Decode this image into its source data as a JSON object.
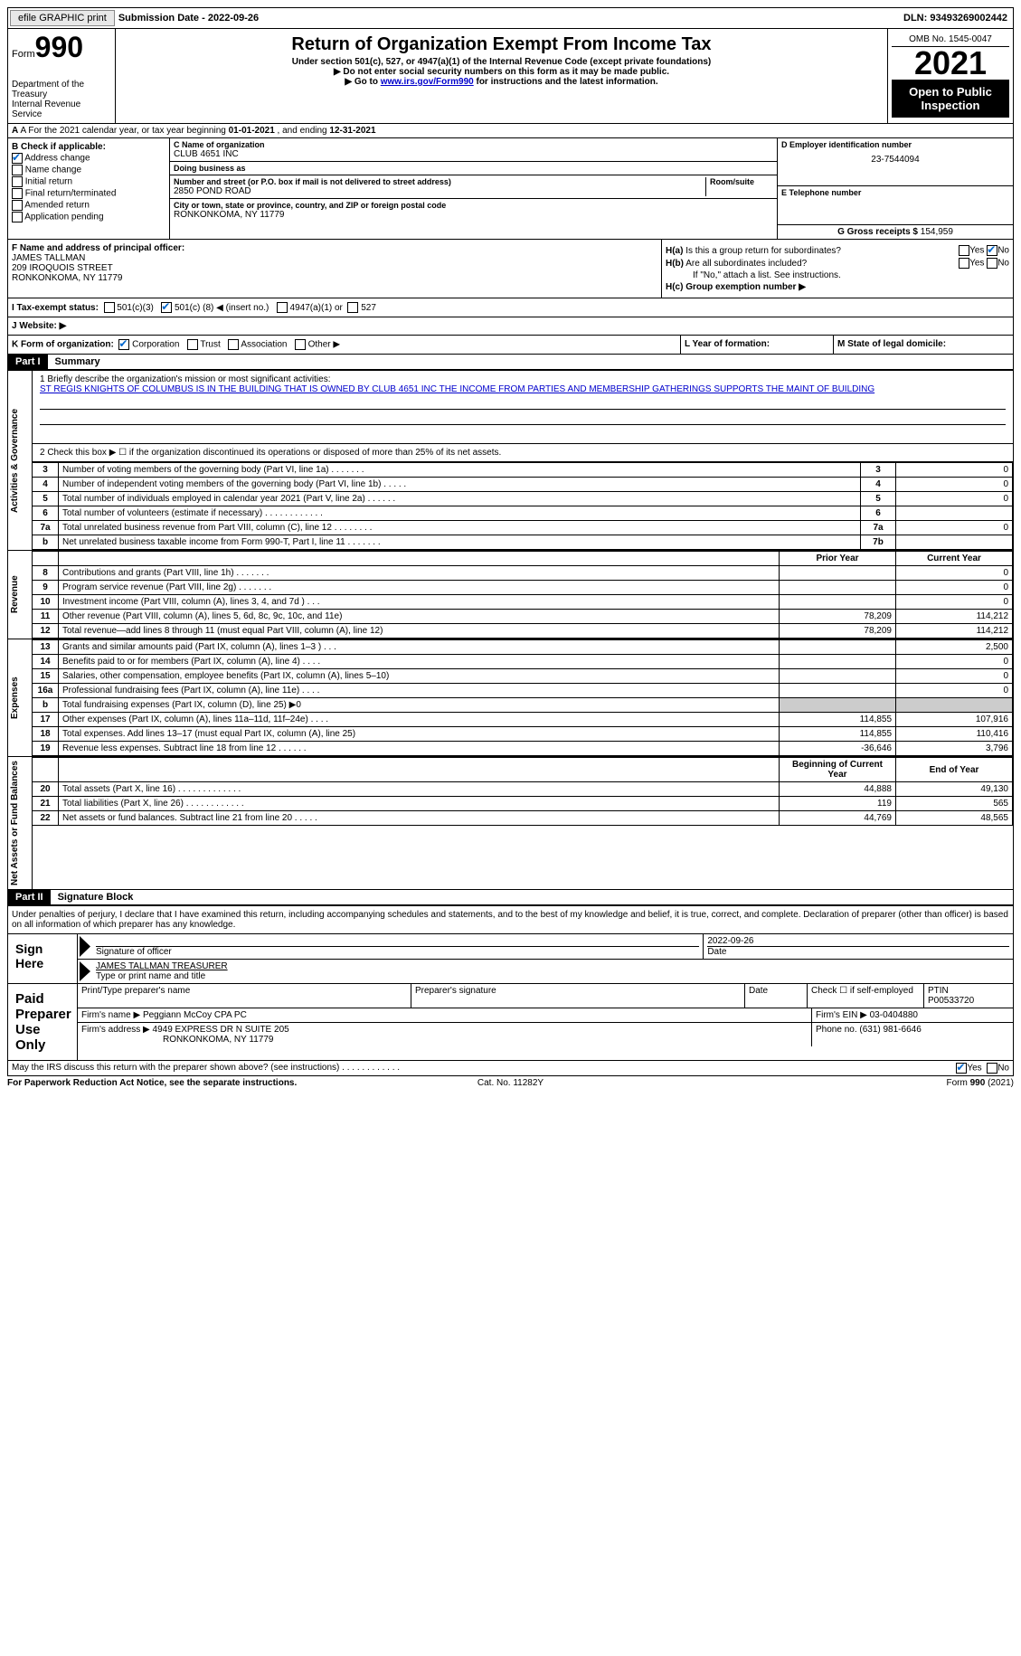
{
  "topbar": {
    "efile": "efile GRAPHIC print",
    "sub_date_label": "Submission Date - ",
    "sub_date": "2022-09-26",
    "dln_label": "DLN: ",
    "dln": "93493269002442"
  },
  "header": {
    "form_word": "Form",
    "form_num": "990",
    "title": "Return of Organization Exempt From Income Tax",
    "subtitle": "Under section 501(c), 527, or 4947(a)(1) of the Internal Revenue Code (except private foundations)",
    "note1": "▶ Do not enter social security numbers on this form as it may be made public.",
    "note2_pre": "▶ Go to ",
    "note2_link": "www.irs.gov/Form990",
    "note2_post": " for instructions and the latest information.",
    "dept": "Department of the Treasury",
    "irs": "Internal Revenue Service",
    "omb": "OMB No. 1545-0047",
    "year": "2021",
    "open": "Open to Public Inspection"
  },
  "rowA": {
    "text_pre": "A For the 2021 calendar year, or tax year beginning ",
    "begin": "01-01-2021",
    "mid": " , and ending ",
    "end": "12-31-2021"
  },
  "colB": {
    "label": "B Check if applicable:",
    "items": [
      {
        "label": "Address change",
        "checked": true
      },
      {
        "label": "Name change",
        "checked": false
      },
      {
        "label": "Initial return",
        "checked": false
      },
      {
        "label": "Final return/terminated",
        "checked": false
      },
      {
        "label": "Amended return",
        "checked": false
      },
      {
        "label": "Application pending",
        "checked": false
      }
    ]
  },
  "colC": {
    "name_label": "C Name of organization",
    "name": "CLUB 4651 INC",
    "dba_label": "Doing business as",
    "dba": "",
    "addr_label": "Number and street (or P.O. box if mail is not delivered to street address)",
    "room_label": "Room/suite",
    "addr": "2850 POND ROAD",
    "city_label": "City or town, state or province, country, and ZIP or foreign postal code",
    "city": "RONKONKOMA, NY  11779"
  },
  "colD": {
    "ein_label": "D Employer identification number",
    "ein": "23-7544094",
    "phone_label": "E Telephone number",
    "phone": "",
    "gross_label": "G Gross receipts $ ",
    "gross": "154,959"
  },
  "colF": {
    "label": "F Name and address of principal officer:",
    "name": "JAMES TALLMAN",
    "addr1": "209 IROQUOIS STREET",
    "addr2": "RONKONKOMA, NY  11779"
  },
  "colH": {
    "a_label": "H(a) Is this a group return for subordinates?",
    "a_no": true,
    "b_label": "H(b) Are all subordinates included?",
    "b_note": "If \"No,\" attach a list. See instructions.",
    "c_label": "H(c) Group exemption number ▶"
  },
  "rowI": {
    "label": "I   Tax-exempt status:",
    "opt1": "501(c)(3)",
    "opt2_pre": "501(c) ( ",
    "opt2_num": "8",
    "opt2_post": " ) ◀ (insert no.)",
    "opt3": "4947(a)(1) or",
    "opt4": "527"
  },
  "rowJ": {
    "label": "J   Website: ▶"
  },
  "rowK": {
    "k_label": "K Form of organization:",
    "k_corp": "Corporation",
    "k_trust": "Trust",
    "k_assoc": "Association",
    "k_other": "Other ▶",
    "l_label": "L Year of formation:",
    "m_label": "M State of legal domicile:"
  },
  "part1": {
    "hdr": "Part I",
    "title": "Summary",
    "q1_label": "1   Briefly describe the organization's mission or most significant activities:",
    "q1_text": "ST REGIS KNIGHTS OF COLUMBUS IS IN THE BUILDING THAT IS OWNED BY CLUB 4651 INC THE INCOME FROM PARTIES AND MEMBERSHIP GATHERINGS SUPPORTS THE MAINT OF BUILDING",
    "q2": "2   Check this box ▶ ☐ if the organization discontinued its operations or disposed of more than 25% of its net assets.",
    "vtab_ag": "Activities & Governance",
    "vtab_rev": "Revenue",
    "vtab_exp": "Expenses",
    "vtab_net": "Net Assets or Fund Balances",
    "prior": "Prior Year",
    "current": "Current Year",
    "begin": "Beginning of Current Year",
    "end": "End of Year"
  },
  "lines_ag": [
    {
      "n": "3",
      "d": "Number of voting members of the governing body (Part VI, line 1a)   .    .    .    .    .    .    .",
      "box": "3",
      "v": "0"
    },
    {
      "n": "4",
      "d": "Number of independent voting members of the governing body (Part VI, line 1b)   .    .    .    .    .",
      "box": "4",
      "v": "0"
    },
    {
      "n": "5",
      "d": "Total number of individuals employed in calendar year 2021 (Part V, line 2a)   .    .    .    .    .    .",
      "box": "5",
      "v": "0"
    },
    {
      "n": "6",
      "d": "Total number of volunteers (estimate if necessary)    .    .    .    .    .    .    .    .    .    .    .    .",
      "box": "6",
      "v": ""
    },
    {
      "n": "7a",
      "d": "Total unrelated business revenue from Part VIII, column (C), line 12   .    .    .    .    .    .    .    .",
      "box": "7a",
      "v": "0"
    },
    {
      "n": "b",
      "d": "Net unrelated business taxable income from Form 990-T, Part I, line 11   .    .    .    .    .    .    .",
      "box": "7b",
      "v": ""
    }
  ],
  "lines_rev": [
    {
      "n": "8",
      "d": "Contributions and grants (Part VIII, line 1h)    .    .    .    .    .    .    .",
      "p": "",
      "c": "0"
    },
    {
      "n": "9",
      "d": "Program service revenue (Part VIII, line 2g)    .    .    .    .    .    .    .",
      "p": "",
      "c": "0"
    },
    {
      "n": "10",
      "d": "Investment income (Part VIII, column (A), lines 3, 4, and 7d )    .    .    .",
      "p": "",
      "c": "0"
    },
    {
      "n": "11",
      "d": "Other revenue (Part VIII, column (A), lines 5, 6d, 8c, 9c, 10c, and 11e)",
      "p": "78,209",
      "c": "114,212"
    },
    {
      "n": "12",
      "d": "Total revenue—add lines 8 through 11 (must equal Part VIII, column (A), line 12)",
      "p": "78,209",
      "c": "114,212"
    }
  ],
  "lines_exp": [
    {
      "n": "13",
      "d": "Grants and similar amounts paid (Part IX, column (A), lines 1–3 )   .    .    .",
      "p": "",
      "c": "2,500"
    },
    {
      "n": "14",
      "d": "Benefits paid to or for members (Part IX, column (A), line 4)   .    .    .    .",
      "p": "",
      "c": "0"
    },
    {
      "n": "15",
      "d": "Salaries, other compensation, employee benefits (Part IX, column (A), lines 5–10)",
      "p": "",
      "c": "0"
    },
    {
      "n": "16a",
      "d": "Professional fundraising fees (Part IX, column (A), line 11e)   .    .    .    .",
      "p": "",
      "c": "0"
    },
    {
      "n": "b",
      "d": "Total fundraising expenses (Part IX, column (D), line 25) ▶0",
      "p": "shade",
      "c": "shade"
    },
    {
      "n": "17",
      "d": "Other expenses (Part IX, column (A), lines 11a–11d, 11f–24e)   .    .    .    .",
      "p": "114,855",
      "c": "107,916"
    },
    {
      "n": "18",
      "d": "Total expenses. Add lines 13–17 (must equal Part IX, column (A), line 25)",
      "p": "114,855",
      "c": "110,416"
    },
    {
      "n": "19",
      "d": "Revenue less expenses. Subtract line 18 from line 12   .    .    .    .    .    .",
      "p": "-36,646",
      "c": "3,796"
    }
  ],
  "lines_net": [
    {
      "n": "20",
      "d": "Total assets (Part X, line 16)   .    .    .    .    .    .    .    .    .    .    .    .    .",
      "p": "44,888",
      "c": "49,130"
    },
    {
      "n": "21",
      "d": "Total liabilities (Part X, line 26)   .    .    .    .    .    .    .    .    .    .    .    .",
      "p": "119",
      "c": "565"
    },
    {
      "n": "22",
      "d": "Net assets or fund balances. Subtract line 21 from line 20   .    .    .    .    .",
      "p": "44,769",
      "c": "48,565"
    }
  ],
  "part2": {
    "hdr": "Part II",
    "title": "Signature Block",
    "decl": "Under penalties of perjury, I declare that I have examined this return, including accompanying schedules and statements, and to the best of my knowledge and belief, it is true, correct, and complete. Declaration of preparer (other than officer) is based on all information of which preparer has any knowledge.",
    "sign_here": "Sign Here",
    "sig_officer": "Signature of officer",
    "sig_date": "2022-09-26",
    "date_lbl": "Date",
    "officer_name": "JAMES TALLMAN  TREASURER",
    "name_title": "Type or print name and title",
    "paid": "Paid Preparer Use Only",
    "prep_name_lbl": "Print/Type preparer's name",
    "prep_sig_lbl": "Preparer's signature",
    "check_self": "Check ☐ if self-employed",
    "ptin_lbl": "PTIN",
    "ptin": "P00533720",
    "firm_name_lbl": "Firm's name    ▶ ",
    "firm_name": "Peggiann McCoy CPA PC",
    "firm_ein_lbl": "Firm's EIN ▶ ",
    "firm_ein": "03-0404880",
    "firm_addr_lbl": "Firm's address ▶ ",
    "firm_addr1": "4949 EXPRESS DR N SUITE 205",
    "firm_addr2": "RONKONKOMA, NY  11779",
    "phone_lbl": "Phone no. ",
    "phone": "(631) 981-6646",
    "discuss": "May the IRS discuss this return with the preparer shown above? (see instructions)   .    .    .    .    .    .    .    .    .    .    .    .",
    "discuss_yes": true
  },
  "footer": {
    "pra": "For Paperwork Reduction Act Notice, see the separate instructions.",
    "cat": "Cat. No. 11282Y",
    "form": "Form 990 (2021)"
  }
}
